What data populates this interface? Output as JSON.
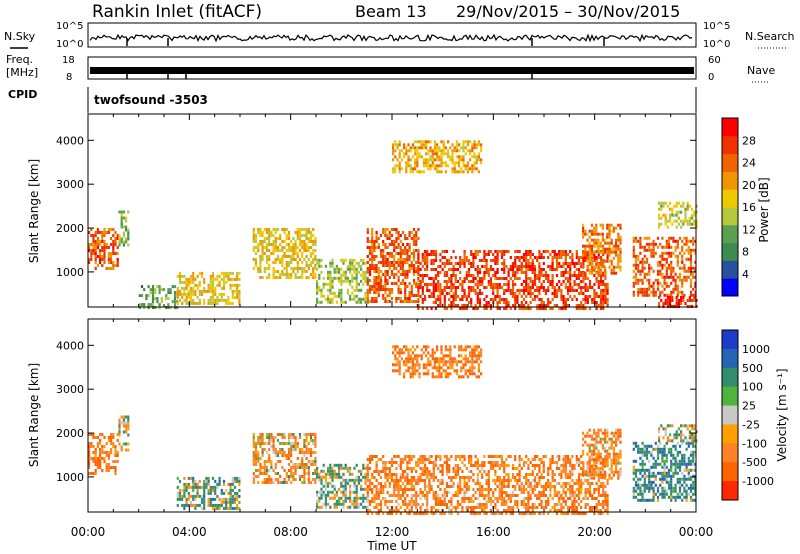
{
  "header": {
    "station": "Rankin Inlet (fitACF)",
    "beam": "Beam 13",
    "date_range": "29/Nov/2015 – 30/Nov/2015"
  },
  "top_strip": {
    "nsky_label": "N.Sky",
    "nsearch_label": "N.Search",
    "left_ticks": [
      "10^5",
      "10^0"
    ],
    "right_ticks": [
      "10^5",
      "10^0"
    ],
    "freq_label": "Freq.",
    "freq_unit": "[MHz]",
    "freq_ticks": [
      "18",
      "8"
    ],
    "nave_label": "Nave",
    "nave_ticks": [
      "60",
      "0"
    ],
    "cpid_label": "CPID",
    "cpid_value": "twofsound -3503"
  },
  "panels": {
    "power": {
      "colorbar_label": "Power [dB]"
    },
    "velocity": {
      "colorbar_label": "Velocity [m s⁻¹]"
    }
  },
  "colors": {
    "power_scale": [
      "#0000ff",
      "#2850a0",
      "#3c8c50",
      "#5aa050",
      "#b4c83c",
      "#f0c800",
      "#f09600",
      "#f06400",
      "#f03200",
      "#ff0000"
    ],
    "velocity_scale": [
      "#1e3cc8",
      "#2864b4",
      "#328c6e",
      "#50b43c",
      "#c8c8c8",
      "#ffa000",
      "#ff8228",
      "#ff6400",
      "#ff2800"
    ]
  },
  "chart_data": [
    {
      "type": "heatmap",
      "panel": "power",
      "xlabel": "",
      "ylabel": "Slant Range [km]",
      "x_ticks": [
        "00:00",
        "04:00",
        "08:00",
        "12:00",
        "16:00",
        "20:00",
        "00:00"
      ],
      "xlim_hours": [
        0,
        24
      ],
      "ylim": [
        200,
        4600
      ],
      "y_ticks": [
        1000,
        2000,
        3000,
        4000
      ],
      "colorbar": {
        "label": "Power [dB]",
        "range": [
          0,
          32
        ],
        "tick_values": [
          4,
          8,
          12,
          16,
          20,
          24,
          28
        ]
      },
      "regions": [
        {
          "t_start": 0.0,
          "t_end": 1.2,
          "r_start": 1100,
          "r_end": 2000,
          "dB": 26
        },
        {
          "t_start": 1.2,
          "t_end": 1.6,
          "r_start": 1600,
          "r_end": 2400,
          "dB": 12
        },
        {
          "t_start": 2.0,
          "t_end": 3.5,
          "r_start": 200,
          "r_end": 700,
          "dB": 10
        },
        {
          "t_start": 3.5,
          "t_end": 6.0,
          "r_start": 300,
          "r_end": 1000,
          "dB": 18
        },
        {
          "t_start": 6.5,
          "t_end": 9.0,
          "r_start": 900,
          "r_end": 2000,
          "dB": 18
        },
        {
          "t_start": 9.0,
          "t_end": 11.0,
          "r_start": 300,
          "r_end": 1300,
          "dB": 14
        },
        {
          "t_start": 11.0,
          "t_end": 13.0,
          "r_start": 300,
          "r_end": 2000,
          "dB": 26
        },
        {
          "t_start": 13.0,
          "t_end": 20.5,
          "r_start": 200,
          "r_end": 1500,
          "dB": 28
        },
        {
          "t_start": 19.5,
          "t_end": 21.0,
          "r_start": 1000,
          "r_end": 2100,
          "dB": 24
        },
        {
          "t_start": 21.5,
          "t_end": 24.0,
          "r_start": 500,
          "r_end": 1800,
          "dB": 26
        },
        {
          "t_start": 22.5,
          "t_end": 24.0,
          "r_start": 200,
          "r_end": 450,
          "dB": 30
        },
        {
          "t_start": 12.0,
          "t_end": 15.5,
          "r_start": 3300,
          "r_end": 4000,
          "dB": 20
        },
        {
          "t_start": 22.5,
          "t_end": 24.0,
          "r_start": 2000,
          "r_end": 2600,
          "dB": 16
        }
      ]
    },
    {
      "type": "heatmap",
      "panel": "velocity",
      "xlabel": "Time UT",
      "ylabel": "Slant Range [km]",
      "x_ticks": [
        "00:00",
        "04:00",
        "08:00",
        "12:00",
        "16:00",
        "20:00",
        "00:00"
      ],
      "xlim_hours": [
        0,
        24
      ],
      "ylim": [
        200,
        4600
      ],
      "y_ticks": [
        1000,
        2000,
        3000,
        4000
      ],
      "colorbar": {
        "label": "Velocity [m s⁻¹]",
        "tick_labels": [
          "1000",
          "500",
          "100",
          "25",
          "-25",
          "-100",
          "-500",
          "-1000"
        ]
      },
      "regions": [
        {
          "t_start": 0.0,
          "t_end": 1.2,
          "r_start": 1100,
          "r_end": 2000,
          "v": -300
        },
        {
          "t_start": 1.2,
          "t_end": 1.6,
          "r_start": 1600,
          "r_end": 2400,
          "v": 50
        },
        {
          "t_start": 3.5,
          "t_end": 6.0,
          "r_start": 300,
          "r_end": 1000,
          "v": 80
        },
        {
          "t_start": 6.5,
          "t_end": 9.0,
          "r_start": 900,
          "r_end": 2000,
          "v": -150
        },
        {
          "t_start": 9.0,
          "t_end": 11.0,
          "r_start": 300,
          "r_end": 1300,
          "v": 60
        },
        {
          "t_start": 11.0,
          "t_end": 20.5,
          "r_start": 200,
          "r_end": 1500,
          "v": -250
        },
        {
          "t_start": 19.5,
          "t_end": 21.0,
          "r_start": 1000,
          "r_end": 2100,
          "v": -200
        },
        {
          "t_start": 21.5,
          "t_end": 24.0,
          "r_start": 500,
          "r_end": 1800,
          "v": 200
        },
        {
          "t_start": 12.0,
          "t_end": 15.5,
          "r_start": 3300,
          "r_end": 4000,
          "v": -300
        },
        {
          "t_start": 22.5,
          "t_end": 24.0,
          "r_start": 1800,
          "r_end": 2200,
          "v": 0
        }
      ]
    }
  ]
}
